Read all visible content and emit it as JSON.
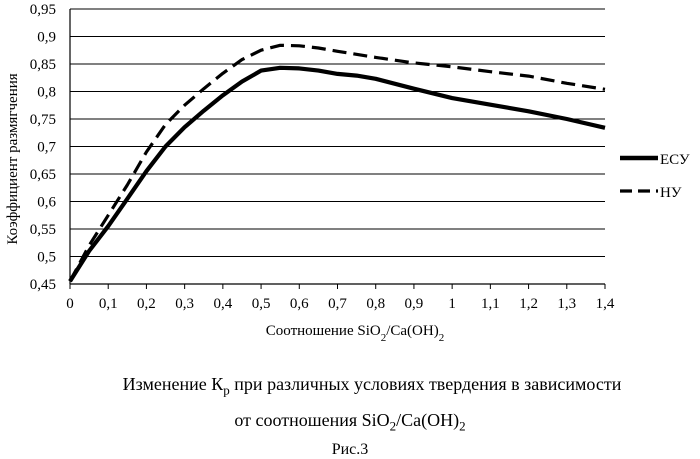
{
  "chart_data": {
    "type": "line",
    "xlabel": "Соотношение SiO2/Ca(OH)2",
    "ylabel": "Коэффициент размягчения",
    "xlim": [
      0,
      1.4
    ],
    "ylim": [
      0.45,
      0.95
    ],
    "x_ticks": [
      "0",
      "0,1",
      "0,2",
      "0,3",
      "0,4",
      "0,5",
      "0,6",
      "0,7",
      "0,8",
      "0,9",
      "1",
      "1,1",
      "1,2",
      "1,3",
      "1,4"
    ],
    "y_ticks": [
      "0,45",
      "0,5",
      "0,55",
      "0,6",
      "0,65",
      "0,7",
      "0,75",
      "0,8",
      "0,85",
      "0,9",
      "0,95"
    ],
    "grid": "horizontal",
    "legend_position": "right",
    "series": [
      {
        "name": "ЕСУ",
        "style": "solid",
        "color": "#000000",
        "x": [
          0,
          0.05,
          0.1,
          0.15,
          0.2,
          0.25,
          0.3,
          0.35,
          0.4,
          0.45,
          0.5,
          0.55,
          0.6,
          0.65,
          0.7,
          0.75,
          0.8,
          0.9,
          1.0,
          1.1,
          1.2,
          1.3,
          1.4
        ],
        "y": [
          0.455,
          0.51,
          0.555,
          0.605,
          0.655,
          0.7,
          0.735,
          0.765,
          0.793,
          0.818,
          0.838,
          0.843,
          0.842,
          0.838,
          0.832,
          0.829,
          0.823,
          0.805,
          0.788,
          0.776,
          0.764,
          0.75,
          0.734
        ]
      },
      {
        "name": "НУ",
        "style": "dashed",
        "color": "#000000",
        "x": [
          0,
          0.05,
          0.1,
          0.15,
          0.2,
          0.25,
          0.3,
          0.35,
          0.4,
          0.45,
          0.5,
          0.55,
          0.6,
          0.65,
          0.7,
          0.8,
          0.9,
          1.0,
          1.1,
          1.2,
          1.3,
          1.4
        ],
        "y": [
          0.455,
          0.52,
          0.575,
          0.63,
          0.69,
          0.74,
          0.775,
          0.805,
          0.833,
          0.858,
          0.875,
          0.884,
          0.883,
          0.879,
          0.873,
          0.862,
          0.852,
          0.845,
          0.836,
          0.828,
          0.815,
          0.804
        ]
      }
    ]
  },
  "caption": {
    "line1": "Изменение Кр при различных условиях твердения в зависимости",
    "line2": "от соотношения SiO2/Ca(OH)2",
    "figure_label": "Рис.3"
  }
}
